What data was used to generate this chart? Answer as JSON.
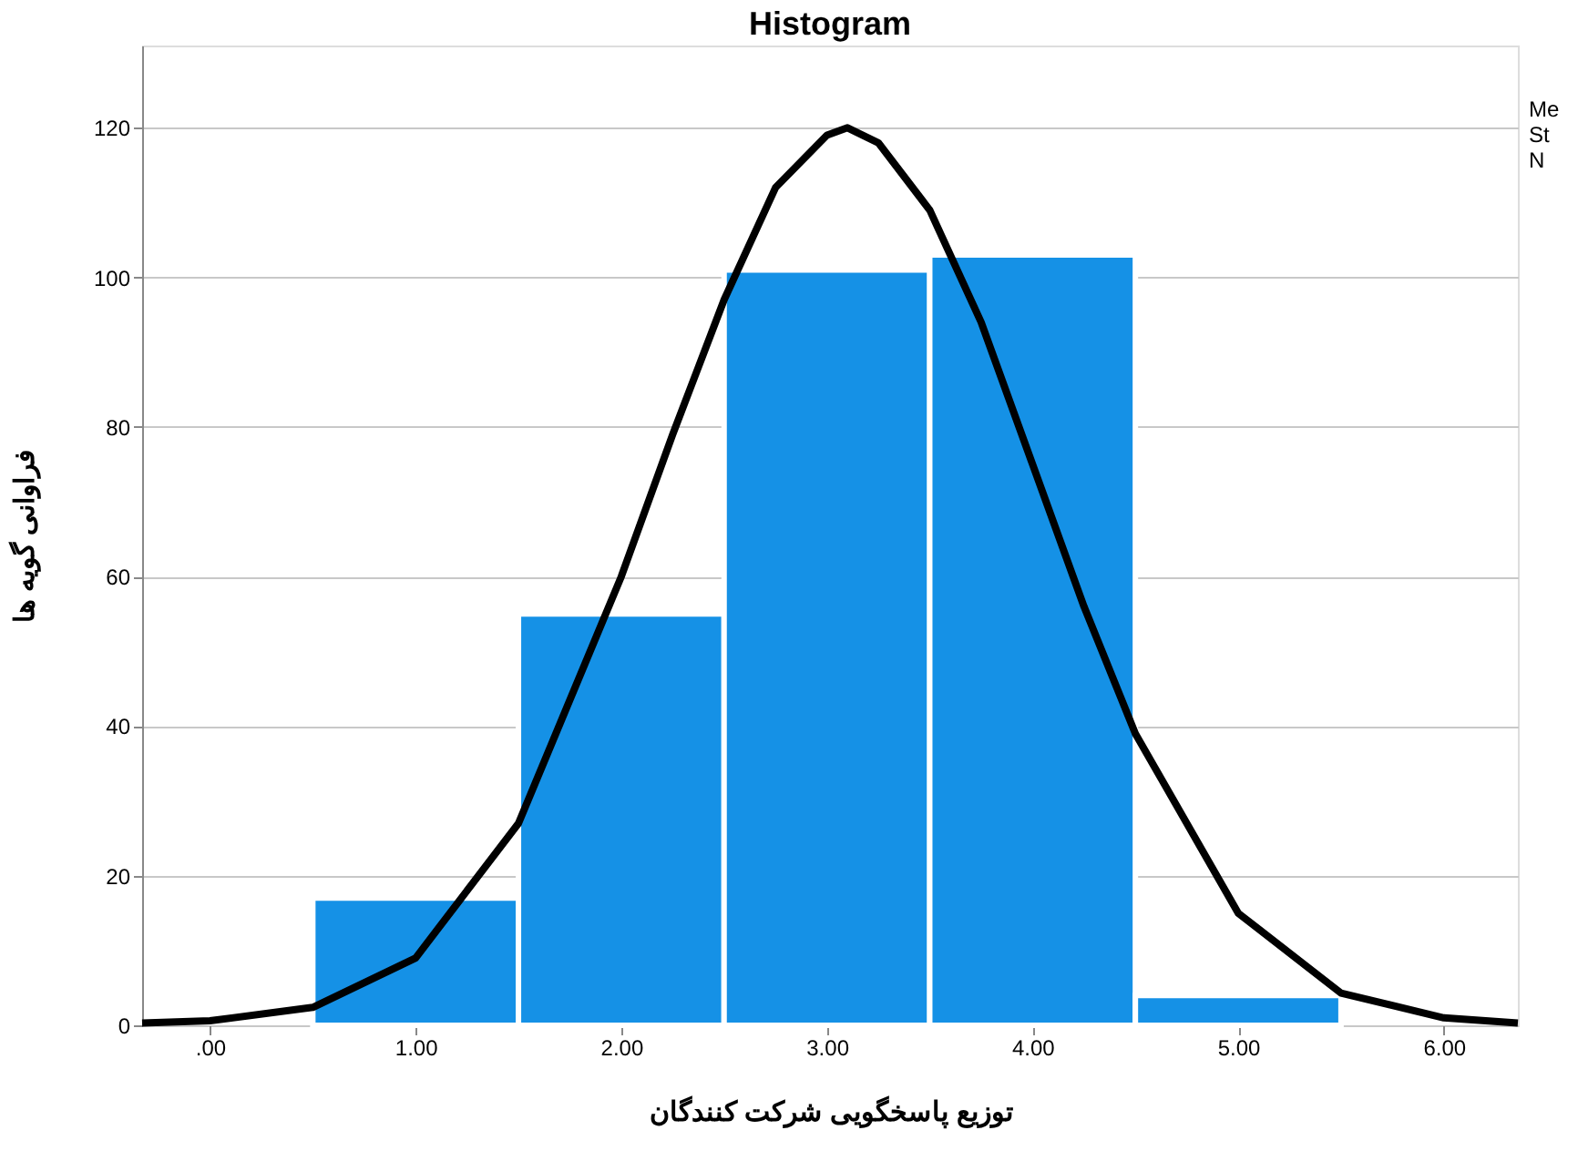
{
  "chart_data": {
    "type": "histogram",
    "title": "Histogram",
    "xlabel": "توزیع پاسخگویی شرکت کنندگان",
    "ylabel": "فراوانی گویه ها",
    "bins": [
      0.5,
      1.5,
      2.5,
      3.5,
      4.5,
      5.5
    ],
    "values": [
      17,
      55,
      101,
      103,
      4
    ],
    "color": "#1591e6",
    "series": [
      {
        "type": "line",
        "color": "#000000",
        "x": [
          -0.33,
          0,
          0.5,
          1.0,
          1.5,
          2.0,
          2.25,
          2.5,
          2.75,
          3.0,
          3.1,
          3.25,
          3.5,
          3.75,
          4.0,
          4.25,
          4.5,
          5.0,
          5.5,
          6.0,
          6.36
        ],
        "values": [
          0.3,
          0.6,
          2.4,
          9,
          27,
          60,
          79,
          97,
          112,
          119,
          120,
          118,
          109,
          94,
          75,
          56,
          39,
          15,
          4.3,
          1,
          0.3
        ]
      }
    ],
    "xlim": [
      -0.33,
      6.36
    ],
    "ylim": [
      0,
      131
    ],
    "xticks": [
      {
        "value": 0,
        "label": ".00"
      },
      {
        "value": 1,
        "label": "1.00"
      },
      {
        "value": 2,
        "label": "2.00"
      },
      {
        "value": 3,
        "label": "3.00"
      },
      {
        "value": 4,
        "label": "4.00"
      },
      {
        "value": 5,
        "label": "5.00"
      },
      {
        "value": 6,
        "label": "6.00"
      }
    ],
    "yticks": [
      0,
      20,
      40,
      60,
      80,
      100,
      120
    ],
    "grid": "y",
    "marker": "none",
    "line_style": "solid",
    "annotations": [
      "Me",
      "St",
      "N"
    ]
  }
}
